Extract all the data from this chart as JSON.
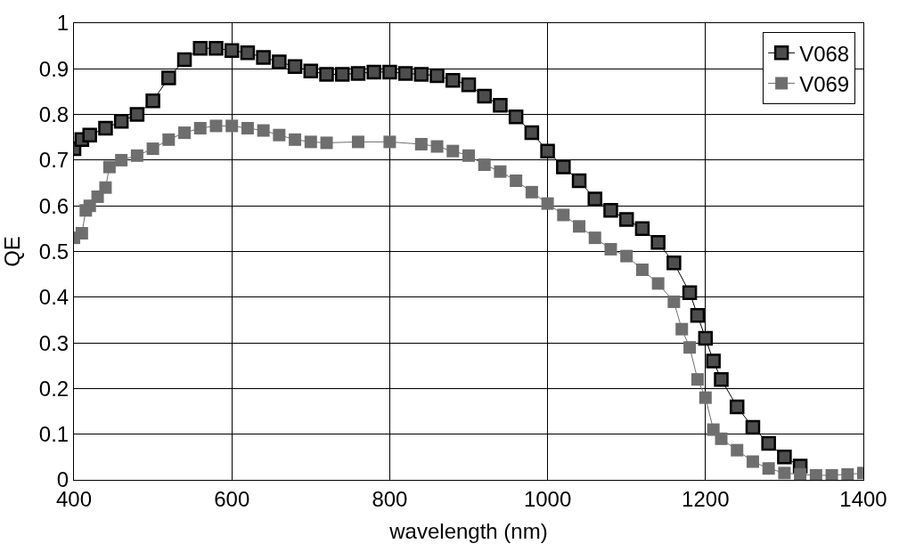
{
  "chart_data": {
    "type": "line",
    "xlabel": "wavelength (nm)",
    "ylabel": "QE",
    "xlim": [
      400,
      1400
    ],
    "xticks": [
      400,
      600,
      800,
      1000,
      1200,
      1400
    ],
    "ylim": [
      0,
      1
    ],
    "yticks": [
      0,
      0.1,
      0.2,
      0.3,
      0.4,
      0.5,
      0.6,
      0.7,
      0.8,
      0.9,
      1
    ],
    "grid": true,
    "legend": "top right",
    "marker": "square",
    "line_style": "solid",
    "series": [
      {
        "name": "V068",
        "color": "#4d4d4d",
        "x": [
          400,
          410,
          420,
          440,
          460,
          480,
          500,
          520,
          540,
          560,
          580,
          600,
          620,
          640,
          660,
          680,
          700,
          720,
          740,
          760,
          780,
          800,
          820,
          840,
          860,
          880,
          900,
          920,
          940,
          960,
          980,
          1000,
          1020,
          1040,
          1060,
          1080,
          1100,
          1120,
          1140,
          1160,
          1180,
          1190,
          1200,
          1210,
          1220,
          1240,
          1260,
          1280,
          1300,
          1320
        ],
        "values": [
          0.725,
          0.745,
          0.755,
          0.77,
          0.785,
          0.8,
          0.83,
          0.88,
          0.92,
          0.945,
          0.945,
          0.94,
          0.935,
          0.925,
          0.915,
          0.905,
          0.895,
          0.888,
          0.888,
          0.89,
          0.893,
          0.893,
          0.89,
          0.888,
          0.885,
          0.875,
          0.865,
          0.84,
          0.82,
          0.795,
          0.76,
          0.72,
          0.685,
          0.655,
          0.615,
          0.59,
          0.57,
          0.55,
          0.52,
          0.475,
          0.41,
          0.36,
          0.31,
          0.26,
          0.22,
          0.16,
          0.115,
          0.08,
          0.05,
          0.03
        ]
      },
      {
        "name": "V069",
        "color": "#6e6e6e",
        "x": [
          400,
          410,
          415,
          420,
          430,
          440,
          445,
          460,
          480,
          500,
          520,
          540,
          560,
          580,
          600,
          620,
          640,
          660,
          680,
          700,
          720,
          760,
          800,
          840,
          860,
          880,
          900,
          920,
          940,
          960,
          980,
          1000,
          1020,
          1040,
          1060,
          1080,
          1100,
          1120,
          1140,
          1160,
          1170,
          1180,
          1190,
          1200,
          1210,
          1220,
          1240,
          1260,
          1280,
          1300,
          1320,
          1340,
          1360,
          1380,
          1400
        ],
        "values": [
          0.53,
          0.54,
          0.59,
          0.6,
          0.62,
          0.64,
          0.685,
          0.7,
          0.71,
          0.725,
          0.745,
          0.76,
          0.77,
          0.775,
          0.775,
          0.77,
          0.765,
          0.755,
          0.745,
          0.74,
          0.738,
          0.74,
          0.74,
          0.735,
          0.73,
          0.72,
          0.71,
          0.69,
          0.675,
          0.655,
          0.63,
          0.605,
          0.58,
          0.555,
          0.53,
          0.505,
          0.49,
          0.46,
          0.43,
          0.39,
          0.33,
          0.29,
          0.22,
          0.18,
          0.11,
          0.09,
          0.065,
          0.04,
          0.025,
          0.015,
          0.012,
          0.01,
          0.01,
          0.012,
          0.015
        ]
      }
    ]
  }
}
